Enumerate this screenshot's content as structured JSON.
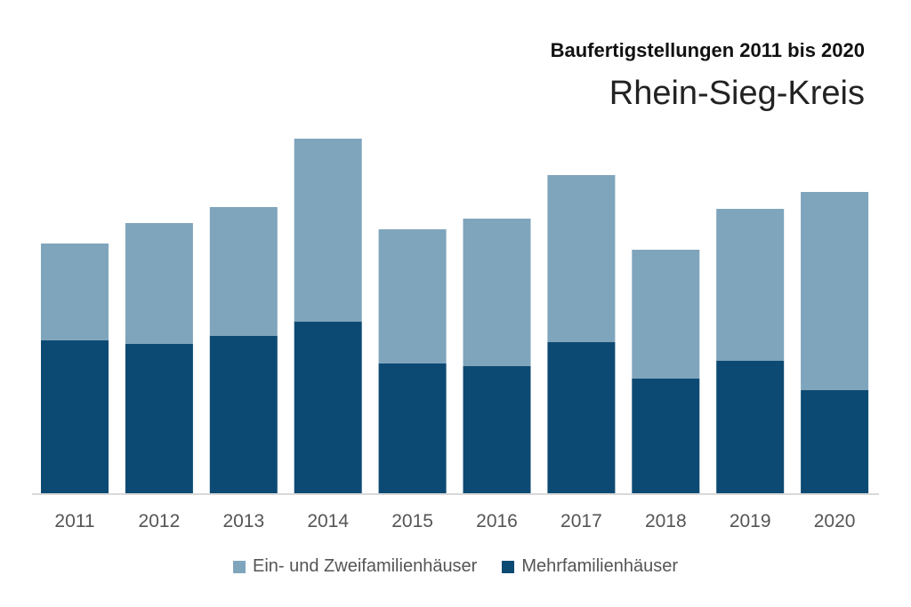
{
  "chart_data": {
    "type": "bar",
    "stacked": true,
    "title": "Baufertigstellungen 2011 bis 2020",
    "subtitle": "Rhein-Sieg-Kreis",
    "xlabel": "",
    "ylabel": "",
    "categories": [
      "2011",
      "2012",
      "2013",
      "2014",
      "2015",
      "2016",
      "2017",
      "2018",
      "2019",
      "2020"
    ],
    "series": [
      {
        "name": "Mehrfamilienhäuser",
        "color": "#0d4a73",
        "values": [
          173,
          169,
          178,
          194,
          147,
          144,
          171,
          130,
          150,
          117
        ]
      },
      {
        "name": "Ein- und Zweifamilienhäuser",
        "color": "#7fa5bd",
        "values": [
          109,
          136,
          145,
          206,
          151,
          166,
          188,
          145,
          171,
          223
        ]
      }
    ],
    "ylim": [
      0,
      420
    ],
    "grid": false,
    "legend_position": "bottom",
    "legend_order": [
      "Ein- und Zweifamilienhäuser",
      "Mehrfamilienhäuser"
    ]
  }
}
